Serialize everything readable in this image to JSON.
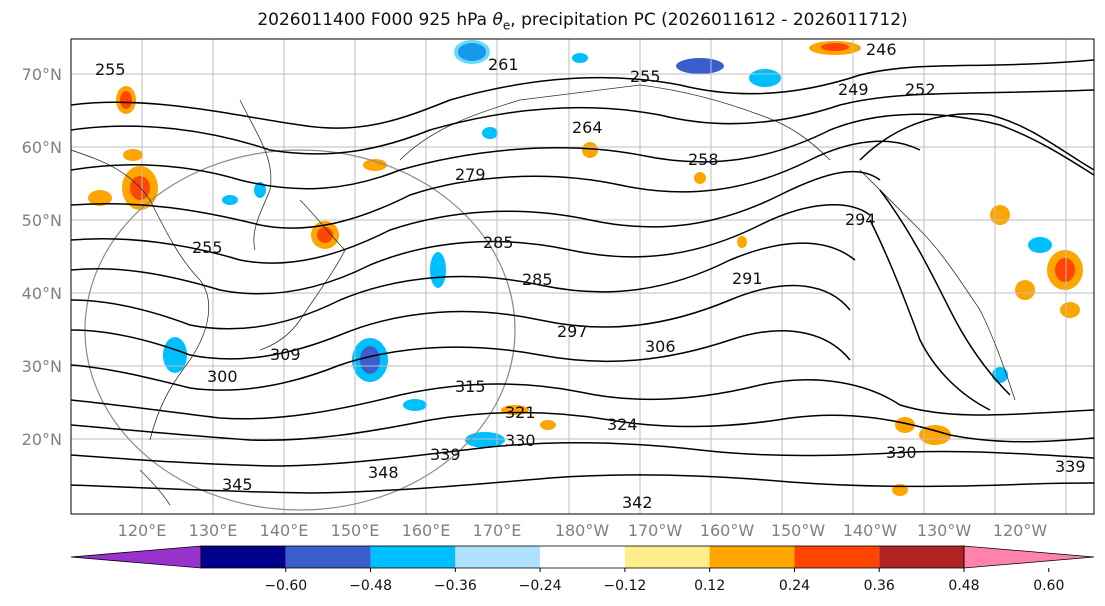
{
  "title": {
    "prefix": "2026011400 F000 925 hPa ",
    "theta": "θ",
    "sub": "e",
    "suffix": ", precipitation PC (2026011612 - 2026011712)"
  },
  "lat_labels": [
    "70°N",
    "60°N",
    "50°N",
    "40°N",
    "30°N",
    "20°N"
  ],
  "lon_labels": [
    "120°E",
    "130°E",
    "140°E",
    "150°E",
    "160°E",
    "170°E",
    "180°W",
    "170°W",
    "160°W",
    "150°W",
    "140°W",
    "130°W",
    "120°W"
  ],
  "contour_labels": [
    "255",
    "261",
    "255",
    "246",
    "249",
    "252",
    "264",
    "258",
    "279",
    "294",
    "285",
    "255",
    "291",
    "285",
    "297",
    "306",
    "300",
    "309",
    "315",
    "324",
    "321",
    "330",
    "339",
    "348",
    "330",
    "339",
    "345",
    "342"
  ],
  "colorbar": {
    "ticks": [
      "−0.60",
      "−0.48",
      "−0.36",
      "−0.24",
      "−0.12",
      "0.12",
      "0.24",
      "0.36",
      "0.48",
      "0.60"
    ],
    "colors": [
      "#9932CC",
      "#00008B",
      "#3A5FCD",
      "#00BFFF",
      "#B0E2FF",
      "#FFFFFF",
      "#FFEC8B",
      "#FFA500",
      "#FF4500",
      "#B22222",
      "#FF82AB"
    ]
  }
}
